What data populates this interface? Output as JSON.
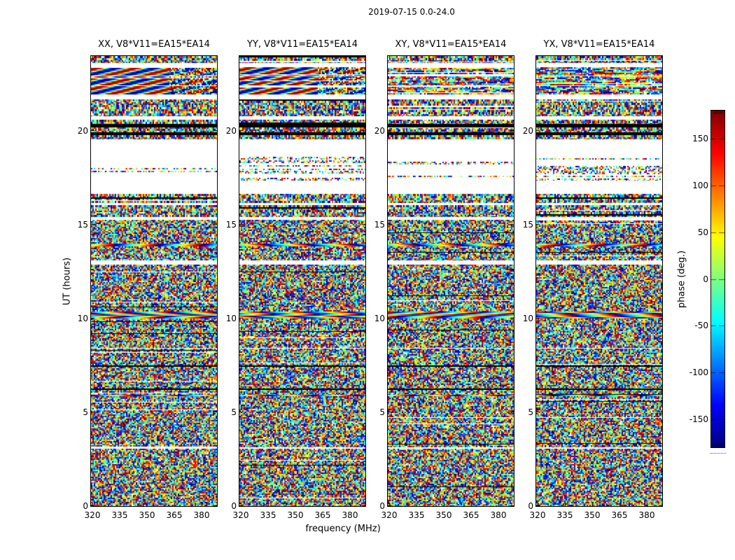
{
  "figure": {
    "title": "2019-07-15 0.0-24.0",
    "background": "#ffffff"
  },
  "chart_data": {
    "type": "heatmap",
    "title": "2019-07-15 0.0-24.0",
    "xlabel": "frequency (MHz)",
    "ylabel": "UT (hours)",
    "x_ticks": [
      320,
      335,
      350,
      365,
      380
    ],
    "y_ticks": [
      0,
      5,
      10,
      15,
      20
    ],
    "x_range_mhz": [
      319,
      389
    ],
    "y_range_hours": [
      0,
      24
    ],
    "grid": false,
    "colormap": "jet",
    "colorbar": {
      "label": "phase (deg.)",
      "ticks": [
        150,
        100,
        50,
        0,
        -50,
        -100,
        -150
      ],
      "range_deg": [
        -180,
        180
      ],
      "orientation": "vertical",
      "position": "right"
    },
    "panels": [
      {
        "label": "XX",
        "title": "XX, V8*V11=EA15*EA14",
        "fringe_style": "smooth",
        "seed": 101
      },
      {
        "label": "YY",
        "title": "YY, V8*V11=EA15*EA14",
        "fringe_style": "smooth",
        "seed": 202
      },
      {
        "label": "XY",
        "title": "XY, V8*V11=EA15*EA14",
        "fringe_style": "striped",
        "seed": 303
      },
      {
        "label": "YX",
        "title": "YX, V8*V11=EA15*EA14",
        "fringe_style": "striped",
        "seed": 404
      }
    ],
    "time_bands": [
      {
        "from": 24.0,
        "to": 23.62,
        "type": "noise"
      },
      {
        "from": 23.62,
        "to": 23.4,
        "type": "white"
      },
      {
        "from": 23.4,
        "to": 22.95,
        "type": "fringe"
      },
      {
        "from": 22.95,
        "to": 22.9,
        "type": "white"
      },
      {
        "from": 22.9,
        "to": 22.45,
        "type": "fringe"
      },
      {
        "from": 22.45,
        "to": 22.4,
        "type": "white"
      },
      {
        "from": 22.4,
        "to": 21.95,
        "type": "fringe"
      },
      {
        "from": 21.95,
        "to": 21.7,
        "type": "white"
      },
      {
        "from": 21.7,
        "to": 20.78,
        "type": "noise"
      },
      {
        "from": 20.78,
        "to": 20.6,
        "type": "white"
      },
      {
        "from": 20.6,
        "to": 20.38,
        "type": "noise"
      },
      {
        "from": 20.38,
        "to": 20.18,
        "type": "black"
      },
      {
        "from": 20.18,
        "to": 19.95,
        "type": "noise"
      },
      {
        "from": 19.95,
        "to": 19.8,
        "type": "black"
      },
      {
        "from": 19.8,
        "to": 19.55,
        "type": "noise"
      },
      {
        "from": 19.55,
        "to": 18.62,
        "type": "white"
      },
      {
        "from": 18.62,
        "to": 17.35,
        "type": "sparse"
      },
      {
        "from": 17.35,
        "to": 16.65,
        "type": "white"
      },
      {
        "from": 16.65,
        "to": 16.18,
        "type": "noise"
      },
      {
        "from": 16.18,
        "to": 16.05,
        "type": "white"
      },
      {
        "from": 16.05,
        "to": 15.42,
        "type": "noise"
      },
      {
        "from": 15.42,
        "to": 15.28,
        "type": "white"
      },
      {
        "from": 15.28,
        "to": 14.0,
        "type": "dense"
      },
      {
        "from": 14.0,
        "to": 13.85,
        "type": "rainbow"
      },
      {
        "from": 13.85,
        "to": 13.1,
        "type": "dense"
      },
      {
        "from": 13.1,
        "to": 12.88,
        "type": "white"
      },
      {
        "from": 12.88,
        "to": 10.38,
        "type": "dense"
      },
      {
        "from": 10.38,
        "to": 10.02,
        "type": "rainbow"
      },
      {
        "from": 10.02,
        "to": 8.45,
        "type": "dense"
      },
      {
        "from": 8.45,
        "to": 8.4,
        "type": "white"
      },
      {
        "from": 8.4,
        "to": 7.52,
        "type": "dense"
      },
      {
        "from": 7.52,
        "to": 7.42,
        "type": "black"
      },
      {
        "from": 7.42,
        "to": 6.28,
        "type": "dense"
      },
      {
        "from": 6.28,
        "to": 6.2,
        "type": "black"
      },
      {
        "from": 6.2,
        "to": 5.95,
        "type": "dense"
      },
      {
        "from": 5.95,
        "to": 5.85,
        "type": "rainbow"
      },
      {
        "from": 5.85,
        "to": 3.12,
        "type": "dense"
      },
      {
        "from": 3.12,
        "to": 3.06,
        "type": "white"
      },
      {
        "from": 3.06,
        "to": 0.0,
        "type": "dense"
      }
    ]
  }
}
